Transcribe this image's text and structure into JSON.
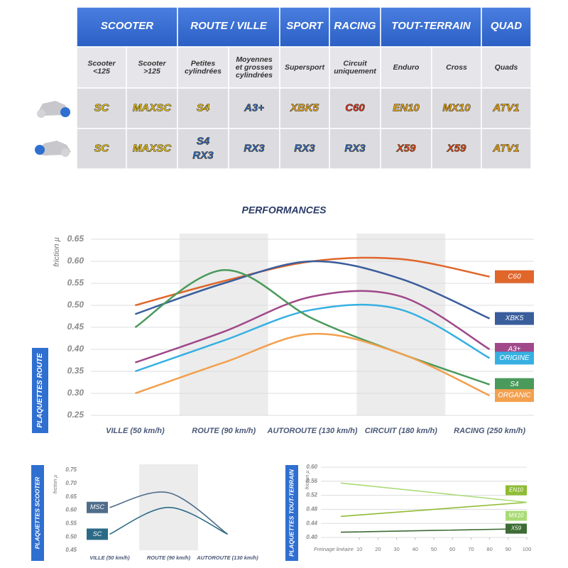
{
  "table": {
    "groups": [
      "SCOOTER",
      "ROUTE / VILLE",
      "SPORT",
      "RACING",
      "TOUT-TERRAIN",
      "QUAD"
    ],
    "subheaders": [
      [
        "Scooter",
        "<125"
      ],
      [
        "Scooter",
        ">125"
      ],
      [
        "Petites",
        "cylindrées"
      ],
      [
        "Moyennes",
        "et grosses",
        "cylindrées"
      ],
      [
        "Supersport"
      ],
      [
        "Circuit",
        "uniquement"
      ],
      [
        "Enduro"
      ],
      [
        "Cross"
      ],
      [
        "Quads"
      ]
    ],
    "rows": [
      [
        "SC",
        "MAXSC",
        "S4",
        "A3+",
        "XBK5",
        "C60",
        "EN10",
        "MX10",
        "ATV1"
      ],
      [
        "SC",
        "MAXSC",
        [
          "S4",
          "RX3"
        ],
        "RX3",
        "RX3",
        "RX3",
        "X59",
        "X59",
        "ATV1"
      ]
    ]
  },
  "chart_data": [
    {
      "type": "line",
      "title": "PERFORMANCES",
      "y_label": "friction µ",
      "section_label": "PLAQUETTES ROUTE",
      "categories": [
        "VILLE (50 km/h)",
        "ROUTE (90 km/h)",
        "AUTOROUTE (130 km/h)",
        "CIRCUIT (180 km/h)",
        "RACING (250 km/h)"
      ],
      "ylim": [
        0.25,
        0.65
      ],
      "yticks": [
        0.25,
        {
          "value": 0.3,
          "label": "0.30"
        },
        0.35,
        {
          "value": 0.4,
          "label": "0.40"
        },
        0.45,
        {
          "value": 0.5,
          "label": "0.50"
        },
        0.55,
        {
          "value": 0.6,
          "label": "0.60"
        },
        0.65
      ],
      "grid": true,
      "legend": "right",
      "series": [
        {
          "name": "C60",
          "color": "#e0662a",
          "values": [
            0.5,
            0.555,
            0.6,
            0.605,
            0.565
          ]
        },
        {
          "name": "XBK5",
          "color": "#3a5d9c",
          "values": [
            0.48,
            0.55,
            0.6,
            0.56,
            0.47
          ]
        },
        {
          "name": "A3+",
          "color": "#a0488a",
          "values": [
            0.37,
            0.44,
            0.52,
            0.52,
            0.4
          ]
        },
        {
          "name": "ORIGINE",
          "color": "#36b0e2",
          "values": [
            0.35,
            0.42,
            0.49,
            0.49,
            0.38
          ]
        },
        {
          "name": "S4",
          "color": "#4a9a5c",
          "values": [
            0.45,
            0.58,
            0.47,
            0.39,
            0.32
          ]
        },
        {
          "name": "ORGANIC",
          "color": "#f2a04e",
          "values": [
            0.3,
            0.37,
            0.435,
            0.39,
            0.295
          ]
        }
      ]
    },
    {
      "type": "line",
      "y_label": "friction µ",
      "section_label": "PLAQUETTES SCOOTER",
      "categories": [
        "VILLE (50 km/h)",
        "ROUTE (90 km/h)",
        "AUTOROUTE (130 km/h)"
      ],
      "ylim": [
        0.45,
        0.75
      ],
      "yticks": [
        0.45,
        {
          "value": 0.5,
          "label": "0.50"
        },
        0.55,
        {
          "value": 0.6,
          "label": "0.60"
        },
        0.65,
        {
          "value": 0.7,
          "label": "0.70"
        },
        0.75
      ],
      "grid": false,
      "legend": "left",
      "series": [
        {
          "name": "MSC",
          "color": "#4f6d8a",
          "values": [
            0.61,
            0.665,
            0.51
          ]
        },
        {
          "name": "SC",
          "color": "#2b6a86",
          "values": [
            0.51,
            0.61,
            0.51
          ]
        }
      ]
    },
    {
      "type": "line",
      "y_label": "friction µ",
      "section_label": "PLAQUETTES TOUT-TERRAIN",
      "x_label": "Freinage linéaire",
      "x": [
        0,
        100
      ],
      "xlim": [
        0,
        100
      ],
      "xticks": [
        10,
        20,
        30,
        40,
        50,
        60,
        70,
        80,
        90,
        100
      ],
      "ylim": [
        0.4,
        0.6
      ],
      "yticks": [
        {
          "value": 0.4,
          "label": "0.40"
        },
        0.44,
        0.48,
        0.52,
        0.56,
        {
          "value": 0.6,
          "label": "0.60"
        }
      ],
      "grid": true,
      "legend": "right",
      "series": [
        {
          "name": "EN10",
          "color": "#8fbc34",
          "values": [
            0.46,
            0.5
          ]
        },
        {
          "name": "MX10",
          "color": "#a9db74",
          "values": [
            0.555,
            0.5
          ]
        },
        {
          "name": "X59",
          "color": "#3d6b34",
          "values": [
            0.415,
            0.425
          ]
        }
      ]
    }
  ]
}
